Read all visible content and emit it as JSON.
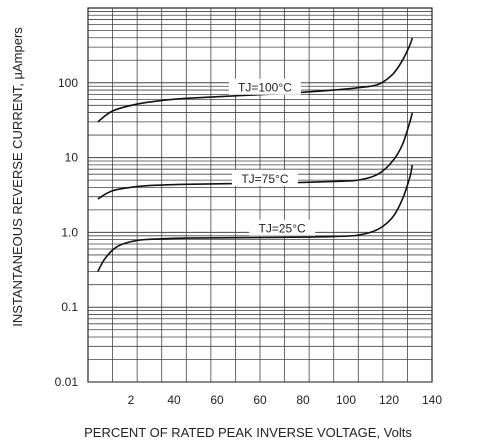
{
  "chart_data": {
    "type": "line",
    "xlabel": "PERCENT OF RATED PEAK INVERSE VOLTAGE, Volts",
    "ylabel": "INSTANTANEOUS REVERSE CURRENT, µAmpers",
    "x_tick_labels": [
      "2",
      "40",
      "60",
      "60",
      "80",
      "100",
      "120",
      "140"
    ],
    "y_tick_labels": [
      "0.01",
      "0.1",
      "1.0",
      "10",
      "100"
    ],
    "ylim": [
      0.01,
      1000
    ],
    "y_scale": "log",
    "xlim": [
      0,
      140
    ],
    "grid": true,
    "series": [
      {
        "name": "TJ=100°C",
        "x": [
          4,
          10,
          20,
          30,
          40,
          60,
          80,
          100,
          110,
          118,
          124,
          128,
          131,
          132
        ],
        "y": [
          30,
          42,
          52,
          58,
          62,
          67,
          72,
          80,
          86,
          95,
          130,
          200,
          320,
          400
        ]
      },
      {
        "name": "TJ=75°C",
        "x": [
          4,
          10,
          20,
          30,
          40,
          60,
          80,
          100,
          110,
          118,
          124,
          128,
          131,
          132
        ],
        "y": [
          2.8,
          3.6,
          4.1,
          4.3,
          4.4,
          4.5,
          4.6,
          4.8,
          5.0,
          6.0,
          9.0,
          15,
          30,
          40
        ]
      },
      {
        "name": "TJ=25°C",
        "x": [
          4,
          7,
          12,
          20,
          30,
          40,
          60,
          80,
          100,
          110,
          118,
          124,
          128,
          131,
          132
        ],
        "y": [
          0.3,
          0.45,
          0.65,
          0.78,
          0.82,
          0.84,
          0.85,
          0.86,
          0.88,
          0.92,
          1.1,
          1.6,
          2.8,
          5.5,
          8
        ]
      }
    ]
  }
}
